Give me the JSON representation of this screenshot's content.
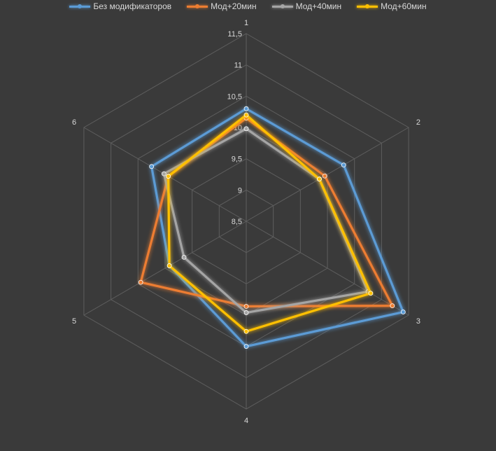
{
  "chart_data": {
    "type": "radar",
    "categories": [
      "1",
      "2",
      "3",
      "4",
      "5",
      "6"
    ],
    "r_ticks": [
      "8,5",
      "9",
      "9,5",
      "10",
      "10,5",
      "11",
      "11,5"
    ],
    "r_range": [
      8.5,
      11.5
    ],
    "grid": true,
    "legend_position": "top",
    "series": [
      {
        "name": "Без модификаторов",
        "color": "#5b9bd5",
        "values": [
          10.3,
          10.3,
          11.4,
          10.5,
          9.92,
          10.25
        ]
      },
      {
        "name": "Мод+20мин",
        "color": "#ed7d31",
        "values": [
          10.15,
          9.95,
          11.2,
          9.86,
          10.45,
          9.94
        ]
      },
      {
        "name": "Мод+40мин",
        "color": "#a5a5a5",
        "values": [
          9.98,
          9.85,
          10.75,
          9.96,
          9.65,
          10.02
        ]
      },
      {
        "name": "Мод+60мин",
        "color": "#ffc000",
        "values": [
          10.2,
          9.85,
          10.8,
          10.26,
          9.92,
          9.94
        ]
      }
    ]
  }
}
